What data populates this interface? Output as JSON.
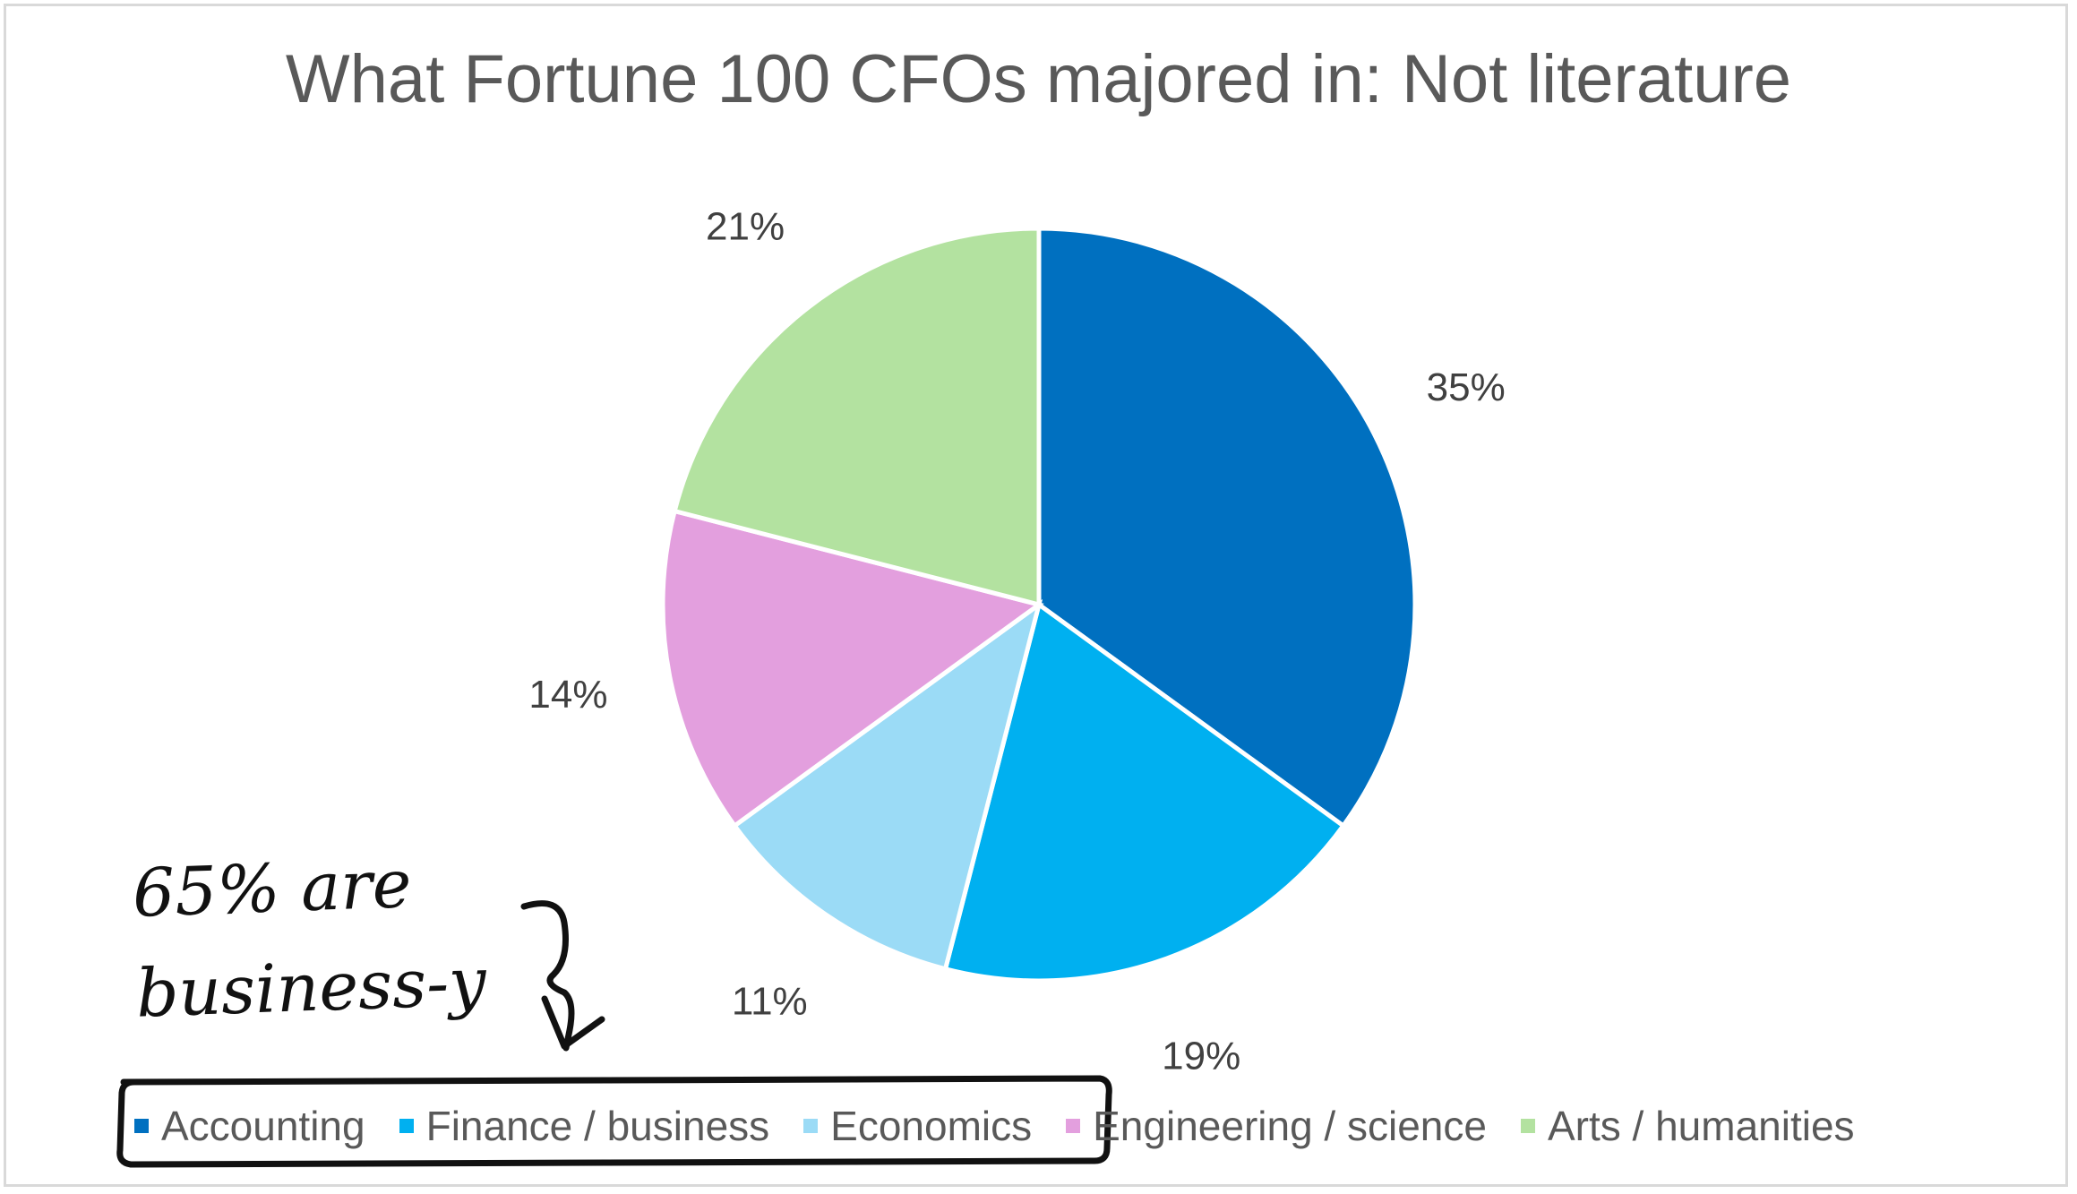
{
  "chart_data": {
    "type": "pie",
    "title": "What Fortune 100 CFOs majored in: Not literature",
    "categories": [
      "Accounting",
      "Finance / business",
      "Economics",
      "Engineering / science",
      "Arts / humanities"
    ],
    "values": [
      35,
      19,
      11,
      14,
      21
    ],
    "labels": [
      "35%",
      "19%",
      "11%",
      "14%",
      "21%"
    ],
    "colors": [
      "#0070c0",
      "#00b0f0",
      "#9bdbf6",
      "#e39fde",
      "#b3e2a0"
    ],
    "start_angle": "12 o'clock",
    "direction": "clockwise",
    "legend_position": "bottom"
  },
  "annotation": {
    "line1": "65% are",
    "line2": "business-y",
    "color": "#111111"
  }
}
